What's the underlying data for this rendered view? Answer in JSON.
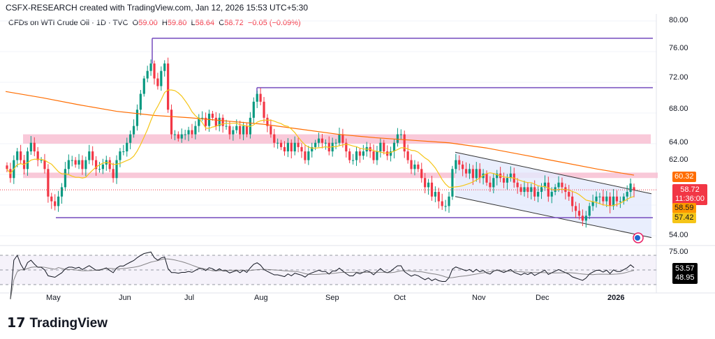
{
  "credit": "CSFX-RESEARCH created with TradingView.com, Jan 12, 2026 15:53 UTC+5:30",
  "legend": {
    "symbol": "CFDs on WTI Crude Oil · 1D · TVC",
    "open_l": "O",
    "open": "59.00",
    "high_l": "H",
    "high": "59.80",
    "low_l": "L",
    "low": "58.64",
    "close_l": "C",
    "close": "58.72",
    "change": "−0.05 (−0.09%)"
  },
  "chart_data": {
    "type": "candlestick",
    "scale": "log",
    "ylim": [
      54,
      80
    ],
    "price_ticks": [
      "80.00",
      "76.00",
      "72.00",
      "68.00",
      "64.00",
      "62.00",
      "54.00"
    ],
    "x_ticks": [
      "May",
      "Jun",
      "Jul",
      "Aug",
      "Sep",
      "Oct",
      "Nov",
      "Dec",
      "2026"
    ],
    "closes": [
      61,
      60,
      62,
      63,
      62,
      61,
      63,
      64,
      63,
      62,
      62,
      61,
      58,
      57.5,
      57,
      58,
      59,
      61,
      62,
      62,
      61.5,
      62,
      61,
      62,
      63,
      62,
      61,
      61,
      61.5,
      62,
      61,
      60,
      62,
      63,
      63,
      64,
      65,
      66,
      68,
      70,
      72,
      73,
      74,
      72,
      71,
      73,
      74,
      68,
      65,
      65,
      64.5,
      65,
      65,
      65.5,
      65,
      66,
      67,
      67,
      66,
      67.5,
      67,
      66,
      67,
      66,
      66,
      65,
      65.5,
      66,
      65,
      66,
      65,
      67,
      69,
      70,
      69,
      67,
      66,
      65,
      64,
      64,
      63.5,
      63,
      64,
      63,
      64,
      63.5,
      63,
      62,
      63,
      63.5,
      64,
      64.5,
      64,
      64,
      63,
      64,
      64,
      65,
      64,
      63,
      62,
      62,
      63,
      62.5,
      63,
      63.5,
      63,
      62,
      63,
      64,
      63,
      62.5,
      63,
      64,
      65,
      65,
      63,
      62,
      61,
      61.5,
      61,
      60,
      59,
      59.5,
      58,
      58.5,
      57.5,
      57,
      57,
      58,
      61,
      62,
      61.5,
      61,
      60.5,
      61,
      60,
      61,
      60,
      60.5,
      59.5,
      59,
      60,
      60.5,
      60,
      59.5,
      60,
      60.5,
      59.5,
      59,
      58.5,
      59,
      58.5,
      59,
      58,
      58.5,
      59,
      59.5,
      58,
      58.5,
      59,
      59.5,
      59,
      58.5,
      58,
      57,
      56.5,
      56,
      55.5,
      56,
      57,
      57.5,
      58,
      58,
      57.5,
      58,
      57,
      58,
      57.5,
      57.5,
      58,
      58.5,
      59.4,
      58.72
    ],
    "ma_slow": [
      70.3,
      69.5,
      68.6,
      67.8,
      67.3,
      67.0,
      66.6,
      66.2,
      65.6,
      65.0,
      64.6,
      64.3,
      64.0,
      63.4,
      62.6,
      61.8,
      61.0,
      60.32
    ],
    "levels": [
      77.5,
      70.8,
      55.8
    ],
    "zones": [
      [
        63.9,
        65.0
      ],
      [
        60.0,
        60.6
      ]
    ],
    "channel": {
      "upper": [
        62.9,
        58.3
      ],
      "lower": [
        58.0,
        53.8
      ]
    },
    "last_price": "58.72",
    "countdown": "11:36:00",
    "ma_slow_label": "60.32",
    "ma_fast_label": "58.59",
    "ma3_label": "57.42",
    "rsi": {
      "ticks": [
        "75.00"
      ],
      "value": "53.57",
      "ma": "48.95"
    },
    "colors": {
      "up": "#089981",
      "down": "#f23645",
      "level": "#7e57c2",
      "zone": "#f8bbd0",
      "ma_slow": "#ff6d00",
      "ma_fast": "#f5c518",
      "channel_fill": "#e3eafc"
    }
  },
  "logo": "TradingView"
}
